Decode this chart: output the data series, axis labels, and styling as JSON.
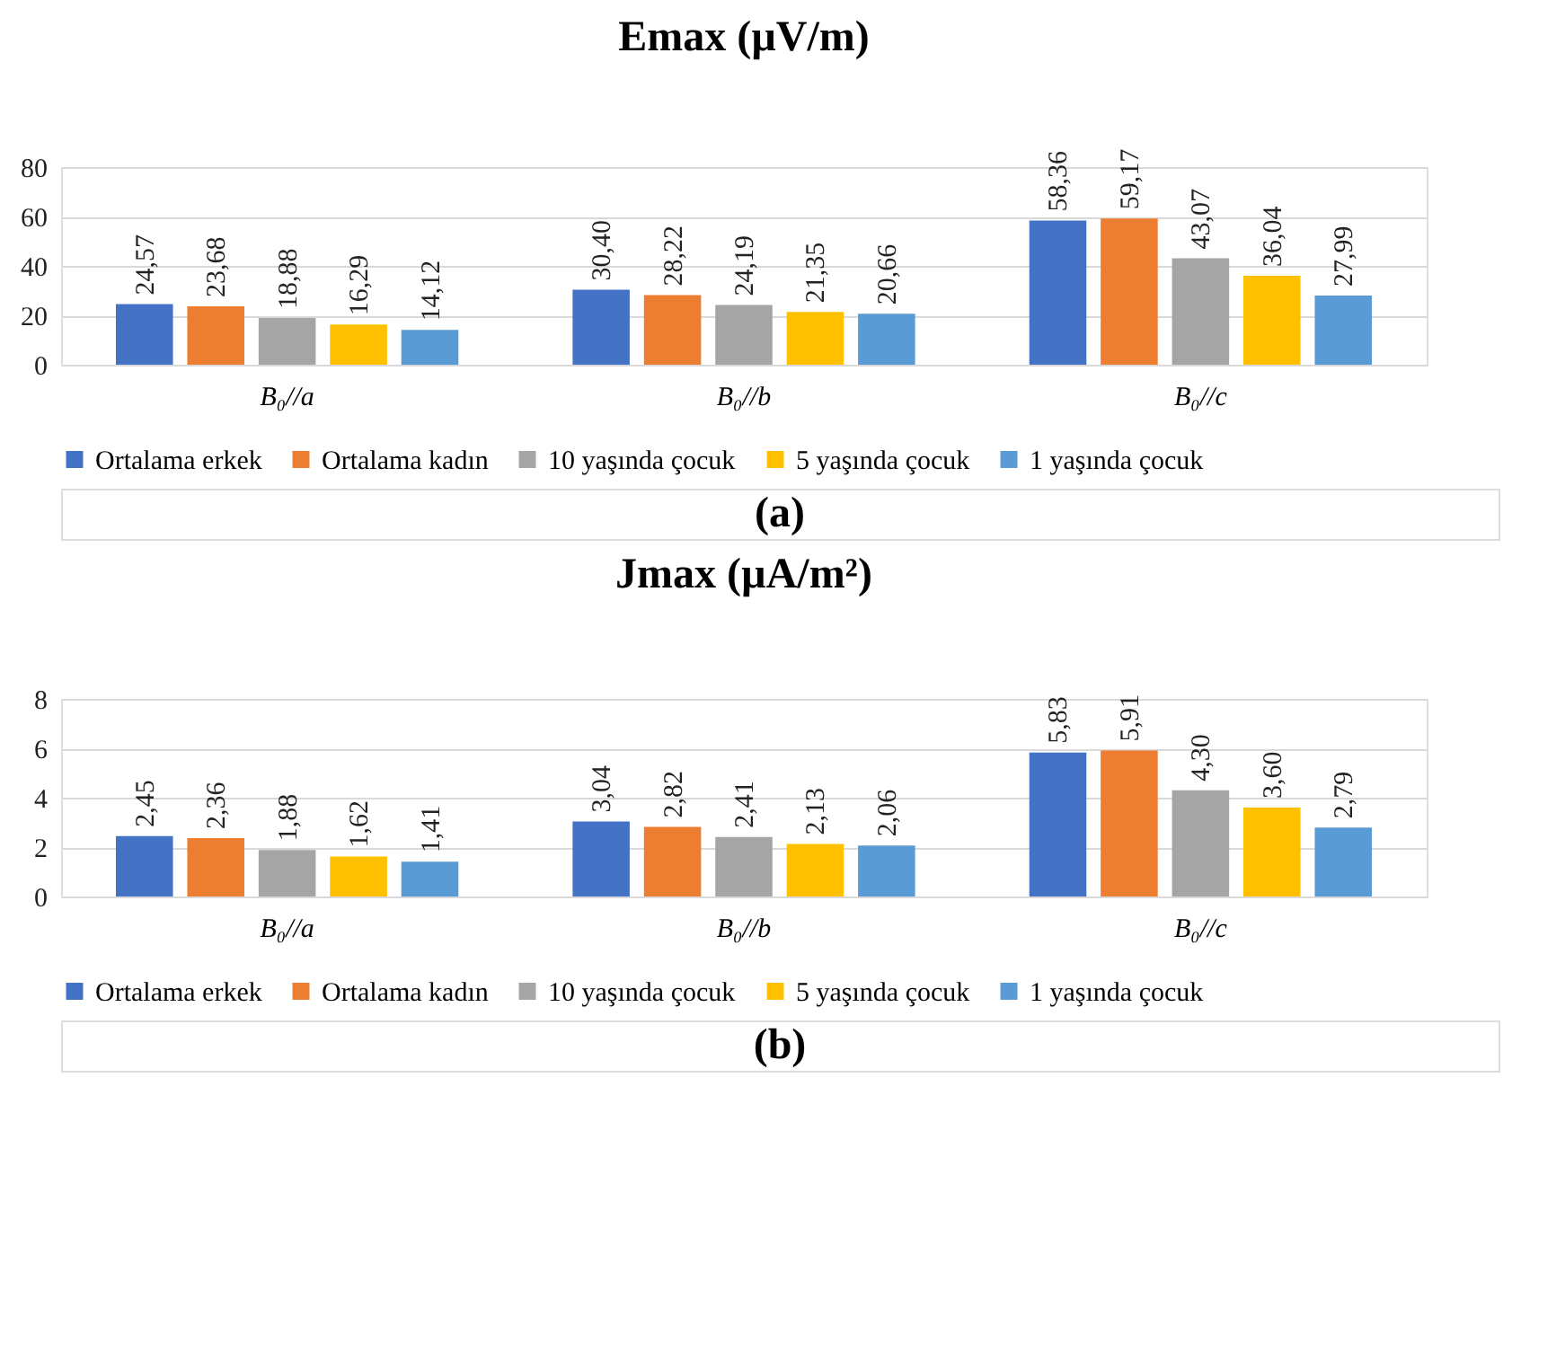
{
  "chart_data": [
    {
      "type": "bar",
      "title": "Emax (µV/m)",
      "categories": [
        "B₀//a",
        "B₀//b",
        "B₀//c"
      ],
      "ylim": [
        0,
        80
      ],
      "yticks": [
        0,
        20,
        40,
        60,
        80
      ],
      "grid": "y",
      "legend": "bottom",
      "annotations": [
        "(a)"
      ],
      "series": [
        {
          "name": "Ortalama erkek",
          "color": "#4472c4",
          "values": [
            24.57,
            30.4,
            58.36
          ],
          "value_labels": [
            "24,57",
            "30,40",
            "58,36"
          ]
        },
        {
          "name": "Ortalama kadın",
          "color": "#ed7d31",
          "values": [
            23.68,
            28.22,
            59.17
          ],
          "value_labels": [
            "23,68",
            "28,22",
            "59,17"
          ]
        },
        {
          "name": "10 yaşında çocuk",
          "color": "#a5a5a5",
          "values": [
            18.88,
            24.19,
            43.07
          ],
          "value_labels": [
            "18,88",
            "24,19",
            "43,07"
          ]
        },
        {
          "name": "5 yaşında çocuk",
          "color": "#ffc000",
          "values": [
            16.29,
            21.35,
            36.04
          ],
          "value_labels": [
            "16,29",
            "21,35",
            "36,04"
          ]
        },
        {
          "name": "1 yaşında çocuk",
          "color": "#5b9bd5",
          "values": [
            14.12,
            20.66,
            27.99
          ],
          "value_labels": [
            "14,12",
            "20,66",
            "27,99"
          ]
        }
      ]
    },
    {
      "type": "bar",
      "title": "Jmax (µA/m²)",
      "categories": [
        "B₀//a",
        "B₀//b",
        "B₀//c"
      ],
      "ylim": [
        0,
        8
      ],
      "yticks": [
        0,
        2,
        4,
        6,
        8
      ],
      "grid": "y",
      "legend": "bottom",
      "annotations": [
        "(b)"
      ],
      "series": [
        {
          "name": "Ortalama erkek",
          "color": "#4472c4",
          "values": [
            2.45,
            3.04,
            5.83
          ],
          "value_labels": [
            "2,45",
            "3,04",
            "5,83"
          ]
        },
        {
          "name": "Ortalama kadın",
          "color": "#ed7d31",
          "values": [
            2.36,
            2.82,
            5.91
          ],
          "value_labels": [
            "2,36",
            "2,82",
            "5,91"
          ]
        },
        {
          "name": "10 yaşında çocuk",
          "color": "#a5a5a5",
          "values": [
            1.88,
            2.41,
            4.3
          ],
          "value_labels": [
            "1,88",
            "2,41",
            "4,30"
          ]
        },
        {
          "name": "5 yaşında çocuk",
          "color": "#ffc000",
          "values": [
            1.62,
            2.13,
            3.6
          ],
          "value_labels": [
            "1,62",
            "2,13",
            "3,60"
          ]
        },
        {
          "name": "1 yaşında çocuk",
          "color": "#5b9bd5",
          "values": [
            1.41,
            2.06,
            2.79
          ],
          "value_labels": [
            "1,41",
            "2,06",
            "2,79"
          ]
        }
      ]
    }
  ]
}
